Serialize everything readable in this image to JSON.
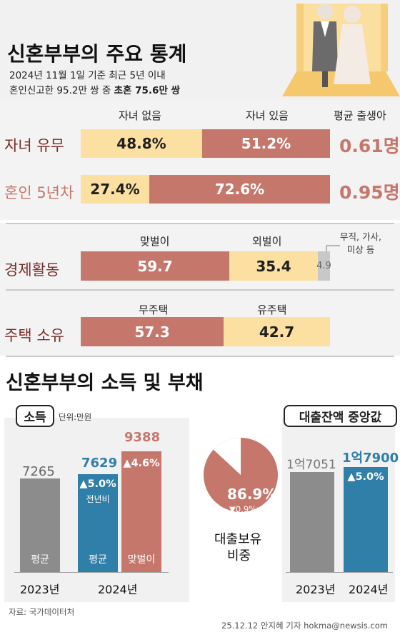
{
  "header": {
    "title": "신혼부부의 주요 통계",
    "sub1": "2024년 11월 1일 기준 최근 5년 이내",
    "sub2_prefix": "혼인신고한 95.2만 쌍 중 ",
    "sub2_bold": "초혼 75.6만 쌍"
  },
  "children_section": {
    "col_no_children": "자녀 없음",
    "col_children": "자녀 있음",
    "col_birth": "평균 출생아",
    "rows": [
      {
        "label": "자녀 유무",
        "no_children": "48.8%",
        "children": "51.2%",
        "birth": "0.61명"
      },
      {
        "label": "혼인 5년차",
        "no_children": "27.4%",
        "children": "72.6%",
        "birth": "0.95명"
      }
    ]
  },
  "economy_section": {
    "label": "경제활동",
    "col_dual": "맞벌이",
    "col_single": "외벌이",
    "col_other": "무직, 가사,\n미상 등",
    "dual": "59.7",
    "single": "35.4",
    "other": "4.9"
  },
  "housing_section": {
    "label": "주택 소유",
    "col_no_house": "무주택",
    "col_house": "유주택",
    "no_house": "57.3",
    "house": "42.7"
  },
  "income_debt": {
    "title": "신혼부부의 소득 및 부채",
    "income_box": "소득",
    "unit": "단위:만원",
    "loan_box": "대출잔액 중앙값",
    "year_2023": "2023년",
    "year_2024": "2024년",
    "avg_2023": "7265",
    "avg_2024": "7629",
    "avg_change": "▲5.0%",
    "yoy": "전년비",
    "dual_2024": "9388",
    "dual_change": "▲4.6%",
    "bar_label_avg": "평균",
    "bar_label_dual": "맞벌이",
    "loan_share": "86.9%",
    "loan_share_change": "▼0.9%p",
    "loan_share_label_1": "대출보유",
    "loan_share_label_2": "비중",
    "loan_2023": "1억7051",
    "loan_2024": "1억7900",
    "loan_change": "▲5.0%"
  },
  "chart_data": [
    {
      "type": "bar",
      "title": "자녀 유무",
      "categories": [
        "자녀 없음",
        "자녀 있음"
      ],
      "values": [
        48.8,
        51.2
      ],
      "unit": "%"
    },
    {
      "type": "bar",
      "title": "혼인 5년차",
      "categories": [
        "자녀 없음",
        "자녀 있음"
      ],
      "values": [
        27.4,
        72.6
      ],
      "unit": "%"
    },
    {
      "type": "bar",
      "title": "경제활동",
      "categories": [
        "맞벌이",
        "외벌이",
        "무직, 가사, 미상 등"
      ],
      "values": [
        59.7,
        35.4,
        4.9
      ]
    },
    {
      "type": "bar",
      "title": "주택 소유",
      "categories": [
        "무주택",
        "유주택"
      ],
      "values": [
        57.3,
        42.7
      ]
    },
    {
      "type": "bar",
      "title": "소득",
      "categories": [
        "2023년 평균",
        "2024년 평균",
        "2024년 맞벌이"
      ],
      "values": [
        7265,
        7629,
        9388
      ],
      "unit": "만원"
    },
    {
      "type": "pie",
      "title": "대출보유 비중",
      "values": [
        86.9,
        13.1
      ],
      "unit": "%"
    },
    {
      "type": "bar",
      "title": "대출잔액 중앙값",
      "categories": [
        "2023년",
        "2024년"
      ],
      "values": [
        17051,
        17900
      ],
      "unit": "만원"
    }
  ],
  "colors": {
    "beige": "#fbe0a2",
    "rose": "#c6776c",
    "gray": "#8c8c8c",
    "blue": "#2f7fa8",
    "label": "#7a2e2a"
  },
  "footer": {
    "source": "자료: 국가데이터처",
    "credit": "25.12.12 안지혜 기자 hokma@newsis.com"
  }
}
